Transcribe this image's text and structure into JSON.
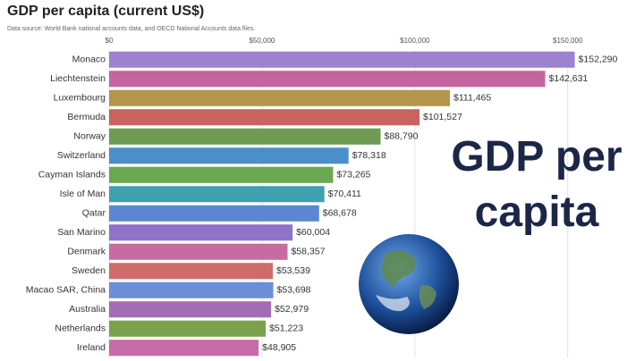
{
  "chart_data": {
    "type": "bar",
    "orientation": "horizontal",
    "title": "GDP per capita (current US$)",
    "subtitle": "Data source: World Bank national accounts data, and OECD National Accounts data files.",
    "annotation": "GDP per capita",
    "categories": [
      "Monaco",
      "Liechtenstein",
      "Luxembourg",
      "Bermuda",
      "Norway",
      "Switzerland",
      "Cayman Islands",
      "Isle of Man",
      "Qatar",
      "San Marino",
      "Denmark",
      "Sweden",
      "Macao SAR, China",
      "Australia",
      "Netherlands",
      "Ireland"
    ],
    "values": [
      152290,
      142631,
      111465,
      101527,
      88790,
      78318,
      73265,
      70411,
      68678,
      60004,
      58357,
      53539,
      53698,
      52979,
      51223,
      48905
    ],
    "value_labels": [
      "$152,290",
      "$142,631",
      "$111,465",
      "$101,527",
      "$88,790",
      "$78,318",
      "$73,265",
      "$70,411",
      "$68,678",
      "$60,004",
      "$58,357",
      "$53,539",
      "$53,698",
      "$52,979",
      "$51,223",
      "$48,905"
    ],
    "colors": [
      "#9d82d2",
      "#c5649f",
      "#b3954c",
      "#c8635f",
      "#6f9b55",
      "#4a8fc8",
      "#6aa851",
      "#3fa1b0",
      "#5b87d1",
      "#8f72c9",
      "#c86ba1",
      "#cf6c6b",
      "#6b8fd6",
      "#a46bb6",
      "#7ca14e",
      "#c86ba9"
    ],
    "xlim": [
      0,
      165000
    ],
    "xticks": [
      {
        "value": 0,
        "label": "$0"
      },
      {
        "value": 50000,
        "label": "$50,000"
      },
      {
        "value": 100000,
        "label": "$100,000"
      },
      {
        "value": 150000,
        "label": "$150,000"
      }
    ],
    "grid": true
  }
}
